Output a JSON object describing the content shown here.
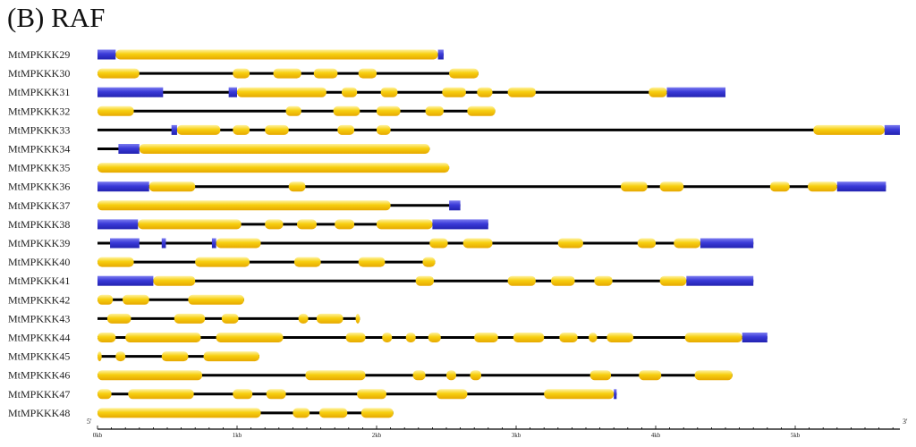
{
  "panel_title": "(B) RAF",
  "axis": {
    "five_prime": "5'",
    "three_prime": "3'",
    "ticks": [
      {
        "label": "0kb",
        "value": 0
      },
      {
        "label": "1kb",
        "value": 1
      },
      {
        "label": "2kb",
        "value": 2
      },
      {
        "label": "3kb",
        "value": 3
      },
      {
        "label": "4kb",
        "value": 4
      },
      {
        "label": "5kb",
        "value": 5
      }
    ],
    "max_kb": 5.75
  },
  "colors": {
    "cds": "#f5c400",
    "utr": "#3a3ad8",
    "intron": "#000000"
  },
  "genes": [
    {
      "name": "MtMPKKK29",
      "length": 2.48,
      "utr": [
        [
          0,
          0.13
        ],
        [
          2.44,
          2.48
        ]
      ],
      "cds": [
        [
          0.13,
          2.44
        ]
      ]
    },
    {
      "name": "MtMPKKK30",
      "length": 2.73,
      "utr": [],
      "cds": [
        [
          0,
          0.3
        ],
        [
          0.97,
          1.09
        ],
        [
          1.26,
          1.46
        ],
        [
          1.55,
          1.72
        ],
        [
          1.87,
          2.0
        ],
        [
          2.52,
          2.73
        ]
      ]
    },
    {
      "name": "MtMPKKK31",
      "length": 4.5,
      "utr": [
        [
          0,
          0.47
        ],
        [
          0.94,
          1.0
        ],
        [
          4.08,
          4.5
        ]
      ],
      "cds": [
        [
          1.0,
          1.64
        ],
        [
          1.75,
          1.86
        ],
        [
          2.03,
          2.15
        ],
        [
          2.47,
          2.64
        ],
        [
          2.72,
          2.83
        ],
        [
          2.94,
          3.14
        ],
        [
          3.95,
          4.08
        ]
      ]
    },
    {
      "name": "MtMPKKK32",
      "length": 2.85,
      "utr": [],
      "cds": [
        [
          0,
          0.26
        ],
        [
          1.35,
          1.46
        ],
        [
          1.69,
          1.88
        ],
        [
          2.0,
          2.17
        ],
        [
          2.35,
          2.48
        ],
        [
          2.65,
          2.85
        ]
      ]
    },
    {
      "name": "MtMPKKK33",
      "length": 5.75,
      "utr": [
        [
          0.53,
          0.57
        ],
        [
          5.64,
          5.75
        ]
      ],
      "cds": [
        [
          0.57,
          0.88
        ],
        [
          0.97,
          1.09
        ],
        [
          1.2,
          1.37
        ],
        [
          1.72,
          1.84
        ],
        [
          2.0,
          2.1
        ],
        [
          5.13,
          5.64
        ]
      ]
    },
    {
      "name": "MtMPKKK34",
      "length": 2.38,
      "utr": [
        [
          0.15,
          0.3
        ]
      ],
      "cds": [
        [
          0.3,
          2.38
        ]
      ]
    },
    {
      "name": "MtMPKKK35",
      "length": 2.52,
      "utr": [],
      "cds": [
        [
          0,
          2.52
        ]
      ]
    },
    {
      "name": "MtMPKKK36",
      "length": 5.65,
      "utr": [
        [
          0,
          0.37
        ],
        [
          5.3,
          5.65
        ]
      ],
      "cds": [
        [
          0.37,
          0.7
        ],
        [
          1.37,
          1.49
        ],
        [
          3.75,
          3.94
        ],
        [
          4.03,
          4.2
        ],
        [
          4.82,
          4.96
        ],
        [
          5.09,
          5.3
        ]
      ]
    },
    {
      "name": "MtMPKKK37",
      "length": 2.6,
      "utr": [
        [
          2.52,
          2.6
        ]
      ],
      "cds": [
        [
          0,
          2.1
        ]
      ]
    },
    {
      "name": "MtMPKKK38",
      "length": 2.8,
      "utr": [
        [
          0,
          0.29
        ],
        [
          2.4,
          2.8
        ]
      ],
      "cds": [
        [
          0.29,
          1.03
        ],
        [
          1.2,
          1.33
        ],
        [
          1.43,
          1.57
        ],
        [
          1.7,
          1.84
        ],
        [
          2.0,
          2.4
        ]
      ]
    },
    {
      "name": "MtMPKKK39",
      "length": 4.7,
      "utr": [
        [
          0.09,
          0.3
        ],
        [
          0.46,
          0.49
        ],
        [
          0.82,
          0.85
        ],
        [
          4.32,
          4.7
        ]
      ],
      "cds": [
        [
          0.85,
          1.17
        ],
        [
          2.38,
          2.51
        ],
        [
          2.62,
          2.83
        ],
        [
          3.3,
          3.48
        ],
        [
          3.87,
          4.0
        ],
        [
          4.13,
          4.32
        ]
      ]
    },
    {
      "name": "MtMPKKK40",
      "length": 2.42,
      "utr": [],
      "cds": [
        [
          0,
          0.26
        ],
        [
          0.7,
          1.09
        ],
        [
          1.41,
          1.6
        ],
        [
          1.87,
          2.06
        ],
        [
          2.33,
          2.42
        ]
      ]
    },
    {
      "name": "MtMPKKK41",
      "length": 4.7,
      "utr": [
        [
          0,
          0.4
        ],
        [
          4.22,
          4.7
        ]
      ],
      "cds": [
        [
          0.4,
          0.7
        ],
        [
          2.28,
          2.41
        ],
        [
          2.94,
          3.14
        ],
        [
          3.25,
          3.42
        ],
        [
          3.56,
          3.69
        ],
        [
          4.03,
          4.22
        ]
      ]
    },
    {
      "name": "MtMPKKK42",
      "length": 1.05,
      "utr": [],
      "cds": [
        [
          0,
          0.11
        ],
        [
          0.18,
          0.37
        ],
        [
          0.65,
          1.05
        ]
      ]
    },
    {
      "name": "MtMPKKK43",
      "length": 1.88,
      "utr": [],
      "cds": [
        [
          0.07,
          0.24
        ],
        [
          0.55,
          0.77
        ],
        [
          0.89,
          1.01
        ],
        [
          1.44,
          1.51
        ],
        [
          1.57,
          1.76
        ],
        [
          1.85,
          1.88
        ]
      ]
    },
    {
      "name": "MtMPKKK44",
      "length": 4.8,
      "utr": [
        [
          4.62,
          4.8
        ]
      ],
      "cds": [
        [
          0,
          0.13
        ],
        [
          0.2,
          0.74
        ],
        [
          0.85,
          1.33
        ],
        [
          1.78,
          1.92
        ],
        [
          2.04,
          2.11
        ],
        [
          2.21,
          2.28
        ],
        [
          2.37,
          2.46
        ],
        [
          2.7,
          2.87
        ],
        [
          2.98,
          3.2
        ],
        [
          3.31,
          3.44
        ],
        [
          3.52,
          3.58
        ],
        [
          3.65,
          3.84
        ],
        [
          4.21,
          4.62
        ]
      ]
    },
    {
      "name": "MtMPKKK45",
      "length": 1.16,
      "utr": [],
      "cds": [
        [
          0,
          0.03
        ],
        [
          0.13,
          0.2
        ],
        [
          0.46,
          0.65
        ],
        [
          0.76,
          1.16
        ]
      ]
    },
    {
      "name": "MtMPKKK46",
      "length": 4.55,
      "utr": [],
      "cds": [
        [
          0,
          0.75
        ],
        [
          1.49,
          1.92
        ],
        [
          2.26,
          2.35
        ],
        [
          2.5,
          2.57
        ],
        [
          2.67,
          2.75
        ],
        [
          3.53,
          3.68
        ],
        [
          3.88,
          4.04
        ],
        [
          4.28,
          4.55
        ]
      ]
    },
    {
      "name": "MtMPKKK47",
      "length": 3.72,
      "utr": [
        [
          3.7,
          3.72
        ]
      ],
      "cds": [
        [
          0,
          0.1
        ],
        [
          0.22,
          0.69
        ],
        [
          0.97,
          1.11
        ],
        [
          1.21,
          1.35
        ],
        [
          1.86,
          2.07
        ],
        [
          2.43,
          2.65
        ],
        [
          3.2,
          3.7
        ]
      ]
    },
    {
      "name": "MtMPKKK48",
      "length": 2.12,
      "utr": [],
      "cds": [
        [
          0,
          1.17
        ],
        [
          1.4,
          1.52
        ],
        [
          1.59,
          1.79
        ],
        [
          1.89,
          2.12
        ]
      ]
    }
  ]
}
